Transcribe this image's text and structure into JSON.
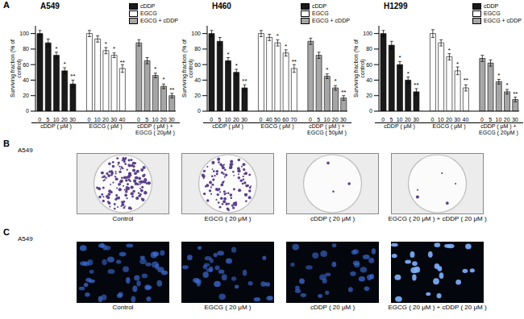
{
  "chart_data": [
    {
      "type": "bar",
      "title": "A549",
      "ylabel": "Surviving fraction (% of control)",
      "ylim": [
        0,
        110
      ],
      "yticks": [
        0,
        20,
        40,
        60,
        80,
        100
      ],
      "legend": "upper right",
      "categories": [
        "0",
        "5",
        "10",
        "20",
        "30",
        null,
        "0",
        "10",
        "20",
        "30",
        "40",
        null,
        "0",
        "5",
        "10",
        "20",
        "30"
      ],
      "series": [
        {
          "name": "cDDP",
          "color": "#1a1a1a",
          "xlabel": "cDDP ( μM )",
          "values": [
            100,
            88,
            72,
            52,
            35,
            null,
            null,
            null,
            null,
            null,
            null,
            null,
            null,
            null,
            null,
            null,
            null
          ],
          "errors": [
            4,
            5,
            4,
            4,
            5,
            null,
            null,
            null,
            null,
            null,
            null,
            null,
            null,
            null,
            null,
            null,
            null
          ],
          "significance": [
            null,
            null,
            "*",
            "*",
            "**",
            null,
            null,
            null,
            null,
            null,
            null,
            null,
            null,
            null,
            null,
            null,
            null
          ]
        },
        {
          "name": "EGCG",
          "color": "#ffffff",
          "xlabel": "EGCG ( μM )",
          "values": [
            null,
            null,
            null,
            null,
            null,
            null,
            100,
            93,
            78,
            72,
            55,
            null,
            null,
            null,
            null,
            null,
            null
          ],
          "errors": [
            null,
            null,
            null,
            null,
            null,
            null,
            4,
            4,
            4,
            3,
            5,
            null,
            null,
            null,
            null,
            null,
            null
          ],
          "significance": [
            null,
            null,
            null,
            null,
            null,
            null,
            null,
            null,
            "*",
            "*",
            "**",
            null,
            null,
            null,
            null,
            null,
            null
          ]
        },
        {
          "name": "EGCG + cDDP",
          "color": "#a6a6a6",
          "xlabel": "cDDP ( μM ) + EGCG ( 20μM )",
          "values": [
            null,
            null,
            null,
            null,
            null,
            null,
            null,
            null,
            null,
            null,
            null,
            null,
            88,
            65,
            46,
            32,
            20
          ],
          "errors": [
            null,
            null,
            null,
            null,
            null,
            null,
            null,
            null,
            null,
            null,
            null,
            null,
            4,
            4,
            3,
            3,
            3
          ],
          "significance": [
            null,
            null,
            null,
            null,
            null,
            null,
            null,
            null,
            null,
            null,
            null,
            null,
            null,
            null,
            "*",
            "*",
            "**"
          ]
        }
      ]
    },
    {
      "type": "bar",
      "title": "H460",
      "ylabel": "Surviving fraction (% of control)",
      "ylim": [
        0,
        110
      ],
      "yticks": [
        0,
        20,
        40,
        60,
        80,
        100
      ],
      "legend": "upper right",
      "categories": [
        "0",
        "5",
        "10",
        "20",
        "30",
        null,
        "0",
        "40",
        "50",
        "60",
        "70",
        null,
        "0",
        "5",
        "10",
        "20",
        "30"
      ],
      "series": [
        {
          "name": "cDDP",
          "color": "#1a1a1a",
          "xlabel": "cDDP ( μM )",
          "values": [
            100,
            90,
            65,
            50,
            30,
            null,
            null,
            null,
            null,
            null,
            null,
            null,
            null,
            null,
            null,
            null,
            null
          ],
          "errors": [
            4,
            5,
            4,
            4,
            4,
            null,
            null,
            null,
            null,
            null,
            null,
            null,
            null,
            null,
            null,
            null,
            null
          ],
          "significance": [
            null,
            null,
            "*",
            "*",
            "**",
            null,
            null,
            null,
            null,
            null,
            null,
            null,
            null,
            null,
            null,
            null,
            null
          ]
        },
        {
          "name": "EGCG",
          "color": "#ffffff",
          "xlabel": "EGCG ( μM )",
          "values": [
            null,
            null,
            null,
            null,
            null,
            null,
            100,
            95,
            88,
            75,
            55,
            null,
            null,
            null,
            null,
            null,
            null
          ],
          "errors": [
            null,
            null,
            null,
            null,
            null,
            null,
            4,
            4,
            4,
            4,
            5,
            null,
            null,
            null,
            null,
            null,
            null
          ],
          "significance": [
            null,
            null,
            null,
            null,
            null,
            null,
            null,
            null,
            "*",
            "*",
            "**",
            null,
            null,
            null,
            null,
            null,
            null
          ]
        },
        {
          "name": "EGCG + cDDP",
          "color": "#a6a6a6",
          "xlabel": "cDDP ( μM ) + EGCG ( 50μM )",
          "values": [
            null,
            null,
            null,
            null,
            null,
            null,
            null,
            null,
            null,
            null,
            null,
            null,
            90,
            72,
            45,
            30,
            17
          ],
          "errors": [
            null,
            null,
            null,
            null,
            null,
            null,
            null,
            null,
            null,
            null,
            null,
            null,
            4,
            4,
            3,
            3,
            3
          ],
          "significance": [
            null,
            null,
            null,
            null,
            null,
            null,
            null,
            null,
            null,
            null,
            null,
            null,
            null,
            null,
            "*",
            "*",
            "**"
          ]
        }
      ]
    },
    {
      "type": "bar",
      "title": "H1299",
      "ylabel": "Surviving fraction (% of control)",
      "ylim": [
        0,
        110
      ],
      "yticks": [
        0,
        20,
        40,
        60,
        80,
        100
      ],
      "legend": "upper right",
      "categories": [
        "0",
        "5",
        "10",
        "20",
        "30",
        null,
        "0",
        "10",
        "20",
        "30",
        "40",
        null,
        "0",
        "5",
        "10",
        "20",
        "30"
      ],
      "series": [
        {
          "name": "cDDP",
          "color": "#1a1a1a",
          "xlabel": "cDDP ( μM )",
          "values": [
            100,
            85,
            60,
            40,
            25,
            null,
            null,
            null,
            null,
            null,
            null,
            null,
            null,
            null,
            null,
            null,
            null
          ],
          "errors": [
            4,
            5,
            4,
            4,
            4,
            null,
            null,
            null,
            null,
            null,
            null,
            null,
            null,
            null,
            null,
            null,
            null
          ],
          "significance": [
            null,
            null,
            "*",
            "*",
            "**",
            null,
            null,
            null,
            null,
            null,
            null,
            null,
            null,
            null,
            null,
            null,
            null
          ]
        },
        {
          "name": "EGCG",
          "color": "#ffffff",
          "xlabel": "EGCG ( μM )",
          "values": [
            null,
            null,
            null,
            null,
            null,
            null,
            100,
            88,
            70,
            52,
            30,
            null,
            null,
            null,
            null,
            null,
            null
          ],
          "errors": [
            null,
            null,
            null,
            null,
            null,
            null,
            5,
            4,
            4,
            5,
            4,
            null,
            null,
            null,
            null,
            null,
            null
          ],
          "significance": [
            null,
            null,
            null,
            null,
            null,
            null,
            null,
            null,
            "*",
            "*",
            "**",
            null,
            null,
            null,
            null,
            null,
            null
          ]
        },
        {
          "name": "EGCG + cDDP",
          "color": "#a6a6a6",
          "xlabel": "cDDP ( μM ) + EGCG ( 20μM )",
          "values": [
            null,
            null,
            null,
            null,
            null,
            null,
            null,
            null,
            null,
            null,
            null,
            null,
            68,
            62,
            38,
            25,
            15
          ],
          "errors": [
            null,
            null,
            null,
            null,
            null,
            null,
            null,
            null,
            null,
            null,
            null,
            null,
            4,
            4,
            3,
            3,
            3
          ],
          "significance": [
            null,
            null,
            null,
            null,
            null,
            null,
            null,
            null,
            null,
            null,
            null,
            null,
            null,
            null,
            "*",
            "*",
            "**"
          ]
        }
      ]
    }
  ],
  "panels": [
    {
      "label": "A"
    },
    {
      "label": "B",
      "cell_line": "A549",
      "captions": [
        "Control",
        "EGCG ( 20 μM )",
        "cDDP ( 20 μM )",
        "EGCG ( 20 μM ) + cDDP ( 20 μM )"
      ]
    },
    {
      "label": "C",
      "cell_line": "A549",
      "captions": [
        "Control",
        "EGCG ( 20 μM )",
        "cDDP ( 20 μM )",
        "EGCG ( 20 μM ) + cDDP ( 20 μM )"
      ]
    }
  ]
}
